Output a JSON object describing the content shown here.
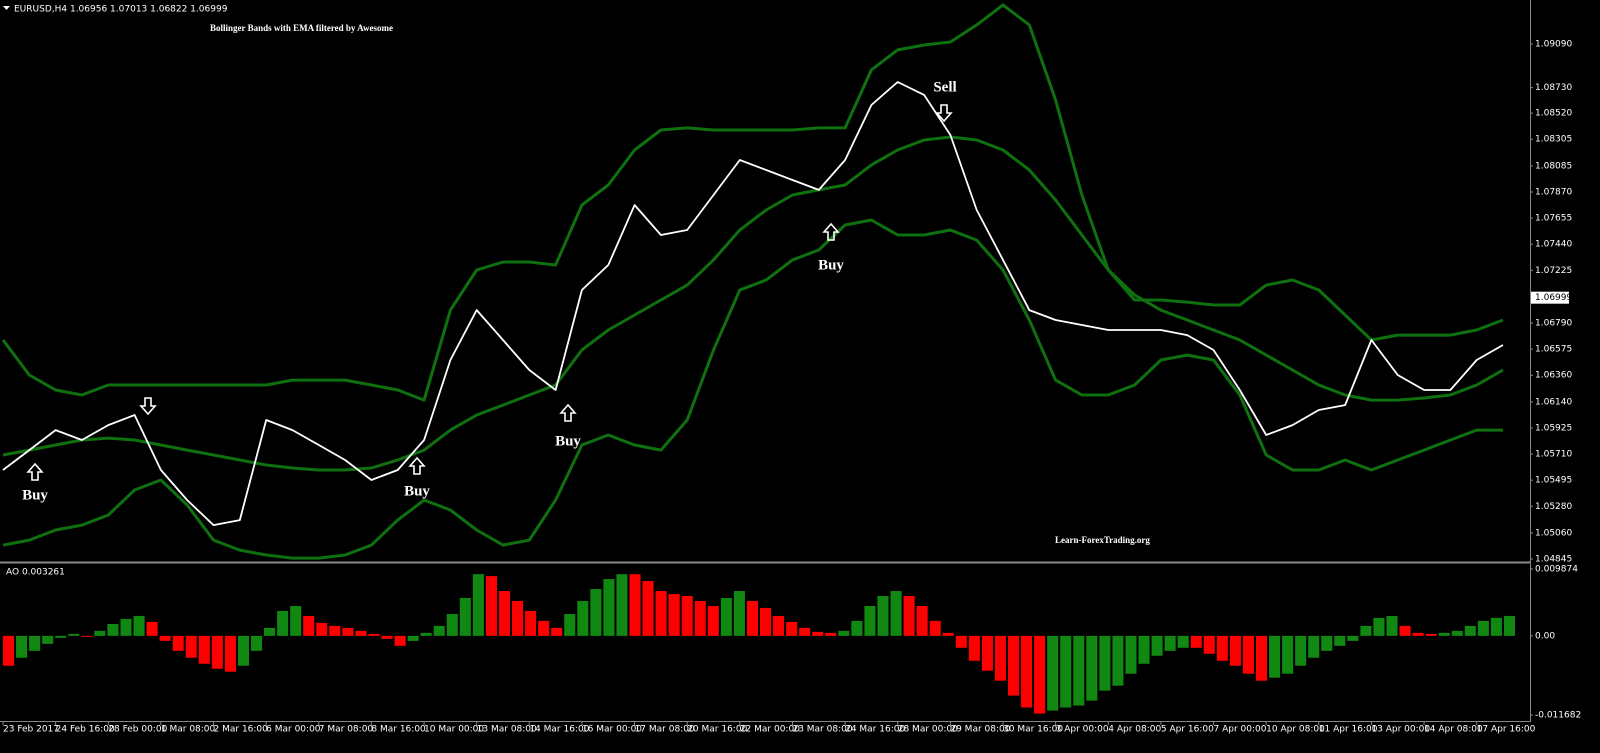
{
  "header": {
    "symbol": "EURUSD,H4  1.06956 1.07013 1.06822 1.06999",
    "title": "Bollinger Bands with EMA  filtered by Awesome",
    "watermark": "Learn-ForexTrading.org"
  },
  "annotations": [
    "Buy",
    "Buy",
    "Buy",
    "Buy",
    "Sell"
  ],
  "chart_data": [
    {
      "type": "line",
      "categories": [
        "23 Feb 2017",
        null,
        "24 Feb 16:00",
        null,
        "28 Feb 00:00",
        null,
        "1 Mar 08:00",
        null,
        "2 Mar 16:00",
        null,
        "6 Mar 00:00",
        null,
        "7 Mar 08:00",
        null,
        "8 Mar 16:00",
        null,
        "10 Mar 00:00",
        null,
        "13 Mar 08:00",
        null,
        "14 Mar 16:00",
        null,
        "16 Mar 00:00",
        null,
        "17 Mar 08:00",
        null,
        "20 Mar 16:00",
        null,
        "22 Mar 00:00",
        null,
        "23 Mar 08:00",
        null,
        "24 Mar 16:00",
        null,
        "28 Mar 00:00",
        null,
        "29 Mar 08:00",
        null,
        "30 Mar 16:00",
        null,
        "3 Apr 00:00",
        null,
        "4 Apr 08:00",
        null,
        "5 Apr 16:00",
        null,
        "7 Apr 00:00",
        null,
        "10 Apr 08:00",
        null,
        "11 Apr 16:00",
        null,
        "13 Apr 00:00",
        null,
        "14 Apr 08:00",
        null,
        "17 Apr 16:00",
        null
      ],
      "series": [
        {
          "color": "#ffffff",
          "values": [
            1.05579,
            1.05743,
            1.05908,
            1.05826,
            1.05949,
            1.06032,
            1.05579,
            1.05331,
            1.05125,
            1.05166,
            1.05991,
            1.05908,
            1.05785,
            1.05661,
            1.05496,
            1.05579,
            1.05826,
            1.06485,
            1.06897,
            1.0665,
            1.06403,
            1.06238,
            1.07062,
            1.07268,
            1.07763,
            1.07516,
            1.07557,
            1.07845,
            1.08134,
            1.08051,
            1.07969,
            1.07887,
            1.08134,
            1.08587,
            1.08777,
            1.0867,
            1.0834,
            1.07722,
            1.0731,
            1.06897,
            1.06815,
            1.06774,
            1.06733,
            1.06733,
            1.06733,
            1.06691,
            1.06568,
            1.06238,
            1.05867,
            1.05949,
            1.06073,
            1.06114,
            1.0665,
            1.06362,
            1.06238,
            1.06238,
            1.06485,
            1.06609
          ]
        },
        {
          "color": "#0f700f",
          "values": [
            1.0665,
            1.06362,
            1.06238,
            1.06197,
            1.06279,
            1.06279,
            1.06279,
            1.06279,
            1.06279,
            1.06279,
            1.06279,
            1.0632,
            1.0632,
            1.0632,
            1.06279,
            1.06238,
            1.06155,
            1.06897,
            1.07227,
            1.07293,
            1.07293,
            1.07268,
            1.07763,
            1.07928,
            1.08216,
            1.08381,
            1.08398,
            1.08381,
            1.08381,
            1.08381,
            1.08381,
            1.08398,
            1.08398,
            1.08876,
            1.09041,
            1.09082,
            1.09106,
            1.09247,
            1.09411,
            1.09247,
            1.08628,
            1.07845,
            1.07227,
            1.0698,
            1.0698,
            1.06963,
            1.06939,
            1.06939,
            1.07103,
            1.07145,
            1.07062,
            1.06856,
            1.0665,
            1.06691,
            1.06691,
            1.06691,
            1.06733,
            1.06815
          ]
        },
        {
          "color": "#0f700f",
          "values": [
            1.05702,
            1.05743,
            1.05785,
            1.05826,
            1.05842,
            1.05826,
            1.05785,
            1.05743,
            1.05702,
            1.05661,
            1.0562,
            1.05595,
            1.05579,
            1.05579,
            1.05595,
            1.05661,
            1.05743,
            1.05908,
            1.06032,
            1.06114,
            1.06197,
            1.06279,
            1.06568,
            1.06733,
            1.06856,
            1.0698,
            1.07103,
            1.0731,
            1.07557,
            1.07722,
            1.07845,
            1.07887,
            1.07928,
            1.08093,
            1.08216,
            1.08299,
            1.08323,
            1.08299,
            1.08216,
            1.08051,
            1.07804,
            1.07516,
            1.07227,
            1.07021,
            1.06897,
            1.06815,
            1.06733,
            1.0665,
            1.06526,
            1.06403,
            1.06279,
            1.06197,
            1.06155,
            1.06155,
            1.06172,
            1.06197,
            1.06279,
            1.06403
          ]
        },
        {
          "color": "#0f700f",
          "values": [
            1.0496,
            1.05001,
            1.05084,
            1.05125,
            1.05208,
            1.05414,
            1.05496,
            1.0529,
            1.05001,
            1.04919,
            1.04878,
            1.04853,
            1.04853,
            1.04878,
            1.0496,
            1.05166,
            1.05331,
            1.05249,
            1.05084,
            1.0496,
            1.05001,
            1.05331,
            1.05785,
            1.05867,
            1.05785,
            1.05743,
            1.05991,
            1.06568,
            1.07062,
            1.07145,
            1.0731,
            1.07392,
            1.07598,
            1.07639,
            1.07516,
            1.07516,
            1.07557,
            1.07474,
            1.07227,
            1.06815,
            1.0632,
            1.06197,
            1.06197,
            1.06279,
            1.06485,
            1.06526,
            1.06485,
            1.06197,
            1.05702,
            1.05579,
            1.05579,
            1.05661,
            1.05579,
            1.05661,
            1.05743,
            1.05826,
            1.05908,
            1.05908
          ]
        }
      ],
      "ylim": [
        1.04837,
        1.09436
      ],
      "yticks": [
        {
          "value": 1.0909,
          "label": "1.09090"
        },
        {
          "value": 1.0873,
          "label": "1.08730"
        },
        {
          "value": 1.0852,
          "label": "1.08520"
        },
        {
          "value": 1.08305,
          "label": "1.08305"
        },
        {
          "value": 1.08085,
          "label": "1.08085"
        },
        {
          "value": 1.0787,
          "label": "1.07870"
        },
        {
          "value": 1.07655,
          "label": "1.07655"
        },
        {
          "value": 1.0744,
          "label": "1.07440"
        },
        {
          "value": 1.07225,
          "label": "1.07225"
        },
        {
          "value": 1.0679,
          "label": "1.06790"
        },
        {
          "value": 1.06575,
          "label": "1.06575"
        },
        {
          "value": 1.0636,
          "label": "1.06360"
        },
        {
          "value": 1.0614,
          "label": "1.06140"
        },
        {
          "value": 1.05925,
          "label": "1.05925"
        },
        {
          "value": 1.0571,
          "label": "1.05710"
        },
        {
          "value": 1.05495,
          "label": "1.05495"
        },
        {
          "value": 1.0528,
          "label": "1.05280"
        },
        {
          "value": 1.0506,
          "label": "1.05060"
        },
        {
          "value": 1.04845,
          "label": "1.04845"
        }
      ],
      "last_price": {
        "value": 1.06999,
        "label": "1.06999"
      }
    },
    {
      "type": "bar",
      "title": "AO 0.003261",
      "up_color": "#118811",
      "down_color": "#ff0000",
      "values": [
        -0.00441,
        -0.00323,
        -0.00221,
        -0.00118,
        -0.00029,
        0.00029,
        -0.00015,
        0.00074,
        0.00176,
        0.0025,
        0.00294,
        0.00206,
        -0.00074,
        -0.00221,
        -0.00323,
        -0.00412,
        -0.00485,
        -0.00529,
        -0.00441,
        -0.00221,
        0.00118,
        0.00368,
        0.00441,
        0.00294,
        0.00191,
        0.00147,
        0.00118,
        0.00074,
        0.00029,
        -0.00044,
        -0.00147,
        -0.00074,
        0.00044,
        0.00147,
        0.00323,
        0.00559,
        0.00911,
        0.00882,
        0.00662,
        0.00515,
        0.00368,
        0.00221,
        0.00118,
        0.00323,
        0.00515,
        0.00691,
        0.00838,
        0.00911,
        0.00911,
        0.00809,
        0.00662,
        0.00617,
        0.00588,
        0.00515,
        0.00441,
        0.00559,
        0.00662,
        0.00515,
        0.00412,
        0.00294,
        0.00206,
        0.00118,
        0.00059,
        0.00044,
        0.00074,
        0.00221,
        0.00441,
        0.00588,
        0.00662,
        0.00588,
        0.00441,
        0.00221,
        0.00044,
        -0.00176,
        -0.00368,
        -0.00515,
        -0.00662,
        -0.00882,
        -0.01058,
        -0.01147,
        -0.01103,
        -0.01058,
        -0.01029,
        -0.00956,
        -0.00809,
        -0.00735,
        -0.00559,
        -0.00412,
        -0.00294,
        -0.00221,
        -0.00176,
        -0.00176,
        -0.00265,
        -0.00368,
        -0.00441,
        -0.00559,
        -0.00662,
        -0.00617,
        -0.00559,
        -0.00441,
        -0.00323,
        -0.00221,
        -0.00147,
        -0.00074,
        0.00147,
        0.00265,
        0.00294,
        0.00147,
        0.00044,
        0.00029,
        0.00044,
        0.00074,
        0.00147,
        0.00221,
        0.00265,
        0.00294
      ],
      "ylim": [
        -0.01242,
        0.01046
      ],
      "yticks": [
        {
          "value": 0.009874,
          "label": "0.009874"
        },
        {
          "value": 0,
          "label": "0.00"
        },
        {
          "value": -0.011682,
          "label": "-0.011682"
        }
      ]
    }
  ]
}
